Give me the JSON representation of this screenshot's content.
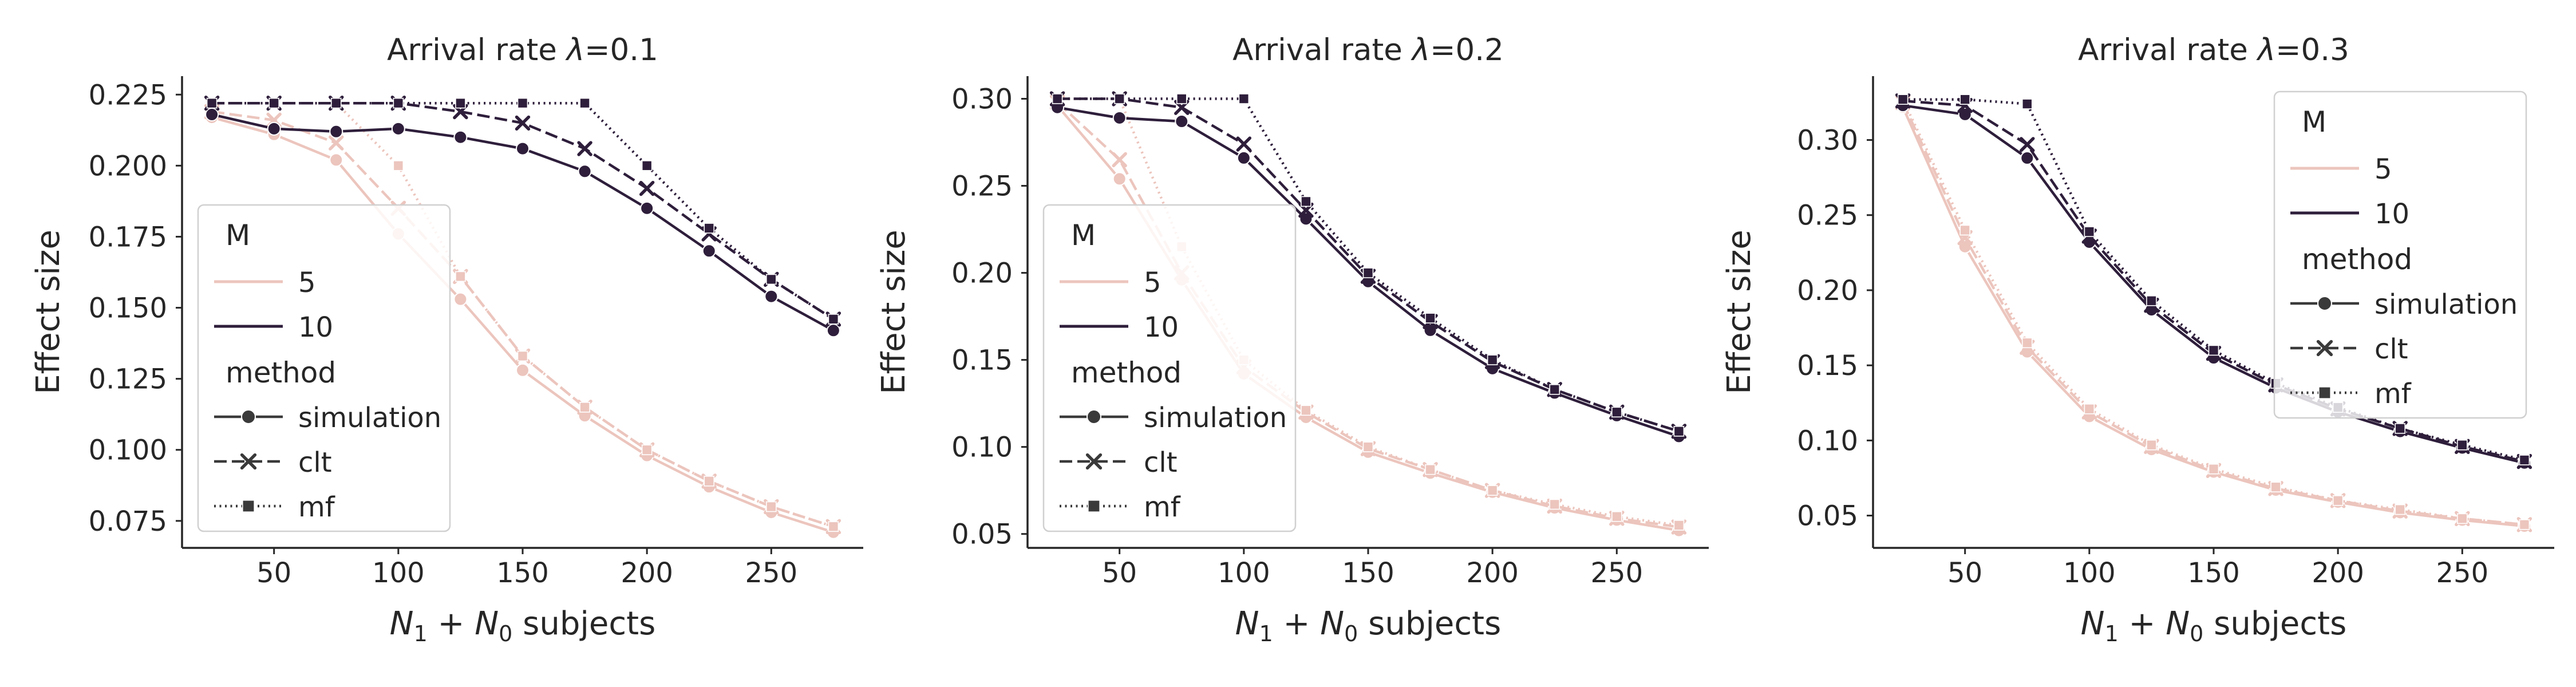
{
  "figure": {
    "colors": {
      "M5": "#ecc5bd",
      "M10": "#2e1e3b",
      "axis": "#262626",
      "text": "#262626"
    }
  },
  "chart_data": [
    {
      "type": "line",
      "title": "Arrival rate λ=0.1",
      "title_prefix": "Arrival rate ",
      "title_symbol": "λ",
      "title_suffix": "=0.1",
      "xlabel": "N₁ + N₀ subjects",
      "xlabel_N1": "N",
      "xlabel_sub1": "1",
      "xlabel_plus": " + ",
      "xlabel_N0": "N",
      "xlabel_sub0": "0",
      "xlabel_rest": " subjects",
      "ylabel": "Effect size",
      "x": [
        25,
        50,
        75,
        100,
        125,
        150,
        175,
        200,
        225,
        250,
        275
      ],
      "xlim": [
        13,
        287
      ],
      "ylim": [
        0.0655,
        0.2315
      ],
      "xticks": [
        50,
        100,
        150,
        200,
        250
      ],
      "xtick_labels": [
        "50",
        "100",
        "150",
        "200",
        "250"
      ],
      "yticks": [
        0.075,
        0.1,
        0.125,
        0.15,
        0.175,
        0.2,
        0.225
      ],
      "ytick_labels": [
        "0.075",
        "0.100",
        "0.125",
        "0.150",
        "0.175",
        "0.200",
        "0.225"
      ],
      "legend_position": "lower-left",
      "series": [
        {
          "name": "M=5 simulation",
          "M": "5",
          "method": "simulation",
          "values": [
            0.217,
            0.211,
            0.202,
            0.176,
            0.153,
            0.128,
            0.112,
            0.098,
            0.087,
            0.078,
            0.071
          ]
        },
        {
          "name": "M=5 clt",
          "M": "5",
          "method": "clt",
          "values": [
            0.219,
            0.216,
            0.208,
            0.185,
            0.161,
            0.133,
            0.115,
            0.1,
            0.089,
            0.08,
            0.073
          ]
        },
        {
          "name": "M=5 mf",
          "M": "5",
          "method": "mf",
          "values": [
            0.222,
            0.222,
            0.222,
            0.2,
            0.161,
            0.133,
            0.115,
            0.1,
            0.089,
            0.08,
            0.073
          ]
        },
        {
          "name": "M=10 simulation",
          "M": "10",
          "method": "simulation",
          "values": [
            0.218,
            0.213,
            0.212,
            0.213,
            0.21,
            0.206,
            0.198,
            0.185,
            0.17,
            0.154,
            0.142
          ]
        },
        {
          "name": "M=10 clt",
          "M": "10",
          "method": "clt",
          "values": [
            0.222,
            0.222,
            0.222,
            0.222,
            0.219,
            0.215,
            0.206,
            0.192,
            0.176,
            0.16,
            0.146
          ]
        },
        {
          "name": "M=10 mf",
          "M": "10",
          "method": "mf",
          "values": [
            0.222,
            0.222,
            0.222,
            0.222,
            0.222,
            0.222,
            0.222,
            0.2,
            0.178,
            0.16,
            0.146
          ]
        }
      ]
    },
    {
      "type": "line",
      "title": "Arrival rate λ=0.2",
      "title_prefix": "Arrival rate ",
      "title_symbol": "λ",
      "title_suffix": "=0.2",
      "xlabel": "N₁ + N₀ subjects",
      "xlabel_N1": "N",
      "xlabel_sub1": "1",
      "xlabel_plus": " + ",
      "xlabel_N0": "N",
      "xlabel_sub0": "0",
      "xlabel_rest": " subjects",
      "ylabel": "Effect size",
      "x": [
        25,
        50,
        75,
        100,
        125,
        150,
        175,
        200,
        225,
        250,
        275
      ],
      "xlim": [
        13,
        287
      ],
      "ylim": [
        0.042,
        0.313
      ],
      "xticks": [
        50,
        100,
        150,
        200,
        250
      ],
      "xtick_labels": [
        "50",
        "100",
        "150",
        "200",
        "250"
      ],
      "yticks": [
        0.05,
        0.1,
        0.15,
        0.2,
        0.25,
        0.3
      ],
      "ytick_labels": [
        "0.05",
        "0.10",
        "0.15",
        "0.20",
        "0.25",
        "0.30"
      ],
      "legend_position": "lower-left",
      "series": [
        {
          "name": "M=5 simulation",
          "M": "5",
          "method": "simulation",
          "values": [
            0.296,
            0.254,
            0.196,
            0.142,
            0.117,
            0.097,
            0.085,
            0.074,
            0.065,
            0.058,
            0.052
          ]
        },
        {
          "name": "M=5 clt",
          "M": "5",
          "method": "clt",
          "values": [
            0.298,
            0.265,
            0.2,
            0.146,
            0.12,
            0.099,
            0.087,
            0.075,
            0.066,
            0.059,
            0.054
          ]
        },
        {
          "name": "M=5 mf",
          "M": "5",
          "method": "mf",
          "values": [
            0.3,
            0.3,
            0.215,
            0.15,
            0.121,
            0.1,
            0.087,
            0.075,
            0.067,
            0.06,
            0.055
          ]
        },
        {
          "name": "M=10 simulation",
          "M": "10",
          "method": "simulation",
          "values": [
            0.295,
            0.289,
            0.287,
            0.266,
            0.231,
            0.195,
            0.167,
            0.145,
            0.131,
            0.118,
            0.106
          ]
        },
        {
          "name": "M=10 clt",
          "M": "10",
          "method": "clt",
          "values": [
            0.3,
            0.3,
            0.295,
            0.274,
            0.236,
            0.198,
            0.172,
            0.149,
            0.133,
            0.12,
            0.109
          ]
        },
        {
          "name": "M=10 mf",
          "M": "10",
          "method": "mf",
          "values": [
            0.3,
            0.3,
            0.3,
            0.3,
            0.241,
            0.2,
            0.174,
            0.15,
            0.133,
            0.12,
            0.109
          ]
        }
      ]
    },
    {
      "type": "line",
      "title": "Arrival rate λ=0.3",
      "title_prefix": "Arrival rate ",
      "title_symbol": "λ",
      "title_suffix": "=0.3",
      "xlabel": "N₁ + N₀ subjects",
      "xlabel_N1": "N",
      "xlabel_sub1": "1",
      "xlabel_plus": " + ",
      "xlabel_N0": "N",
      "xlabel_sub0": "0",
      "xlabel_rest": " subjects",
      "ylabel": "Effect size",
      "x": [
        25,
        50,
        75,
        100,
        125,
        150,
        175,
        200,
        225,
        250,
        275
      ],
      "xlim": [
        13,
        287
      ],
      "ylim": [
        0.0285,
        0.3425
      ],
      "xticks": [
        50,
        100,
        150,
        200,
        250
      ],
      "xtick_labels": [
        "50",
        "100",
        "150",
        "200",
        "250"
      ],
      "yticks": [
        0.05,
        0.1,
        0.15,
        0.2,
        0.25,
        0.3
      ],
      "ytick_labels": [
        "0.05",
        "0.10",
        "0.15",
        "0.20",
        "0.25",
        "0.30"
      ],
      "legend_position": "upper-right",
      "series": [
        {
          "name": "M=5 simulation",
          "M": "5",
          "method": "simulation",
          "values": [
            0.322,
            0.229,
            0.159,
            0.116,
            0.094,
            0.079,
            0.067,
            0.059,
            0.052,
            0.047,
            0.043
          ]
        },
        {
          "name": "M=5 clt",
          "M": "5",
          "method": "clt",
          "values": [
            0.325,
            0.235,
            0.162,
            0.119,
            0.096,
            0.08,
            0.068,
            0.06,
            0.053,
            0.048,
            0.044
          ]
        },
        {
          "name": "M=5 mf",
          "M": "5",
          "method": "mf",
          "values": [
            0.327,
            0.24,
            0.165,
            0.121,
            0.097,
            0.081,
            0.069,
            0.06,
            0.054,
            0.048,
            0.044
          ]
        },
        {
          "name": "M=10 simulation",
          "M": "10",
          "method": "simulation",
          "values": [
            0.323,
            0.317,
            0.288,
            0.232,
            0.187,
            0.155,
            0.135,
            0.119,
            0.106,
            0.095,
            0.085
          ]
        },
        {
          "name": "M=10 clt",
          "M": "10",
          "method": "clt",
          "values": [
            0.326,
            0.323,
            0.297,
            0.236,
            0.19,
            0.158,
            0.137,
            0.121,
            0.108,
            0.096,
            0.086
          ]
        },
        {
          "name": "M=10 mf",
          "M": "10",
          "method": "mf",
          "values": [
            0.327,
            0.327,
            0.324,
            0.239,
            0.193,
            0.16,
            0.138,
            0.122,
            0.108,
            0.097,
            0.087
          ]
        }
      ]
    }
  ],
  "legend": {
    "title_hue": "M",
    "hue_labels": [
      "5",
      "10"
    ],
    "title_style": "method",
    "style_labels": [
      "simulation",
      "clt",
      "mf"
    ]
  }
}
